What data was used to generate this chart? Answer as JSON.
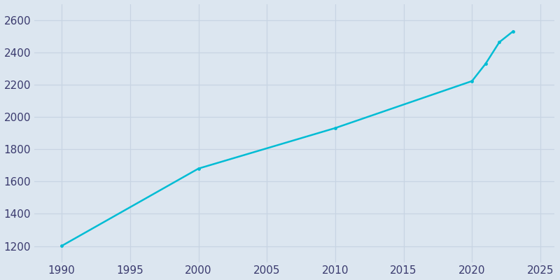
{
  "years": [
    1990,
    2000,
    2010,
    2020,
    2021,
    2022,
    2023
  ],
  "population": [
    1201,
    1680,
    1931,
    2222,
    2330,
    2463,
    2530
  ],
  "line_color": "#00bcd4",
  "marker_color": "#00bcd4",
  "fig_bg_color": "#dce6f0",
  "axes_bg_color": "#dce6f0",
  "grid_color": "#c8d4e3",
  "tick_color": "#3a3a6e",
  "xticks": [
    1990,
    1995,
    2000,
    2005,
    2010,
    2015,
    2020,
    2025
  ],
  "yticks": [
    1200,
    1400,
    1600,
    1800,
    2000,
    2200,
    2400,
    2600
  ],
  "xlim": [
    1988,
    2026
  ],
  "ylim": [
    1100,
    2700
  ],
  "linewidth": 1.8,
  "markersize": 3.5
}
